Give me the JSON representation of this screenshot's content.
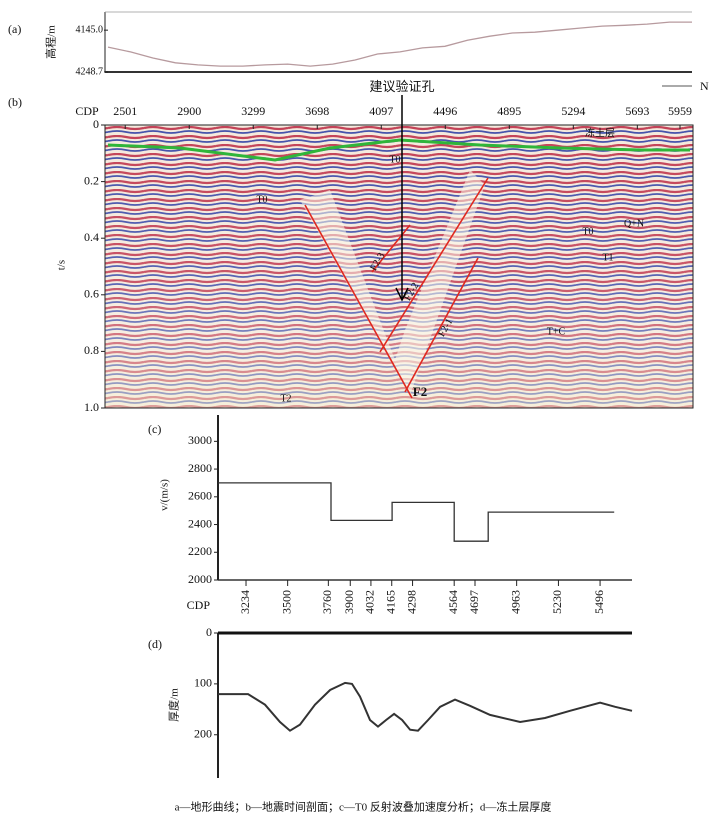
{
  "chart_data": [
    {
      "label": "(a)",
      "type": "line",
      "ylabel": "高程/m",
      "direction_label": "N",
      "color": "#b79a9e",
      "ylim": [
        4248.7,
        4100
      ],
      "yticks": [
        {
          "value": 4145,
          "label": "4145.0"
        },
        4248.7
      ],
      "values": [
        4187,
        4199,
        4214,
        4226,
        4231,
        4234,
        4234,
        4231,
        4229,
        4234,
        4229,
        4219,
        4204,
        4199,
        4189,
        4185,
        4170,
        4160,
        4152,
        4150,
        4145,
        4140,
        4135,
        4133,
        4130,
        4125,
        4125
      ]
    },
    {
      "label": "(b)",
      "type": "seismic",
      "xlabel": "CDP",
      "ylabel": "t/s",
      "xlim": [
        2375,
        6040
      ],
      "xticks": [
        2501,
        2900,
        3299,
        3698,
        4097,
        4496,
        4895,
        5294,
        5693,
        5959
      ],
      "ylim": [
        1,
        0
      ],
      "yticks": [
        0,
        0.2,
        0.4,
        0.6,
        0.8,
        {
          "value": 1,
          "label": "1.0"
        }
      ],
      "annotations": [
        "建议验证孔",
        "冻土层",
        "T0",
        "T0",
        "T0",
        "Q+N",
        "T1",
        "T+C",
        "T2",
        "F2",
        "F2-1",
        "F2-2",
        "F2-3"
      ]
    },
    {
      "label": "(c)",
      "type": "line",
      "xlabel": "CDP",
      "ylabel": "v/(m/s)",
      "color": "#333333",
      "xlim": [
        3055,
        5700
      ],
      "xticks": [
        3234,
        3500,
        3760,
        3900,
        4032,
        4165,
        4298,
        4564,
        4697,
        4963,
        5230,
        5496
      ],
      "ylim": [
        2000,
        3190
      ],
      "yticks": [
        2000,
        2200,
        2400,
        2600,
        2800,
        3000
      ],
      "x": [
        3055,
        3777,
        3777,
        4167,
        4167,
        4564,
        4564,
        4781,
        4781,
        5586
      ],
      "values": [
        2700,
        2700,
        2430,
        2430,
        2560,
        2560,
        2280,
        2280,
        2490,
        2490
      ]
    },
    {
      "label": "(d)",
      "type": "line",
      "ylabel": "厚度/m",
      "color": "#333333",
      "xlim": [
        3055,
        5700
      ],
      "ylim": [
        285,
        0
      ],
      "yticks": [
        0,
        100,
        200
      ],
      "x": [
        3055,
        3247,
        3355,
        3451,
        3515,
        3579,
        3675,
        3771,
        3867,
        3911,
        3962,
        4026,
        4077,
        4129,
        4180,
        4231,
        4282,
        4333,
        4397,
        4474,
        4569,
        4665,
        4793,
        4985,
        5144,
        5304,
        5496,
        5592,
        5700
      ],
      "values": [
        120,
        120,
        141,
        175,
        192,
        180,
        141,
        112,
        98,
        100,
        125,
        171,
        184,
        171,
        159,
        171,
        190,
        192,
        171,
        145,
        131,
        143,
        161,
        175,
        167,
        153,
        137,
        145,
        153
      ]
    }
  ],
  "caption": "a—地形曲线；b—地震时间剖面；c—T0 反射波叠加速度分析；d—冻土层厚度"
}
